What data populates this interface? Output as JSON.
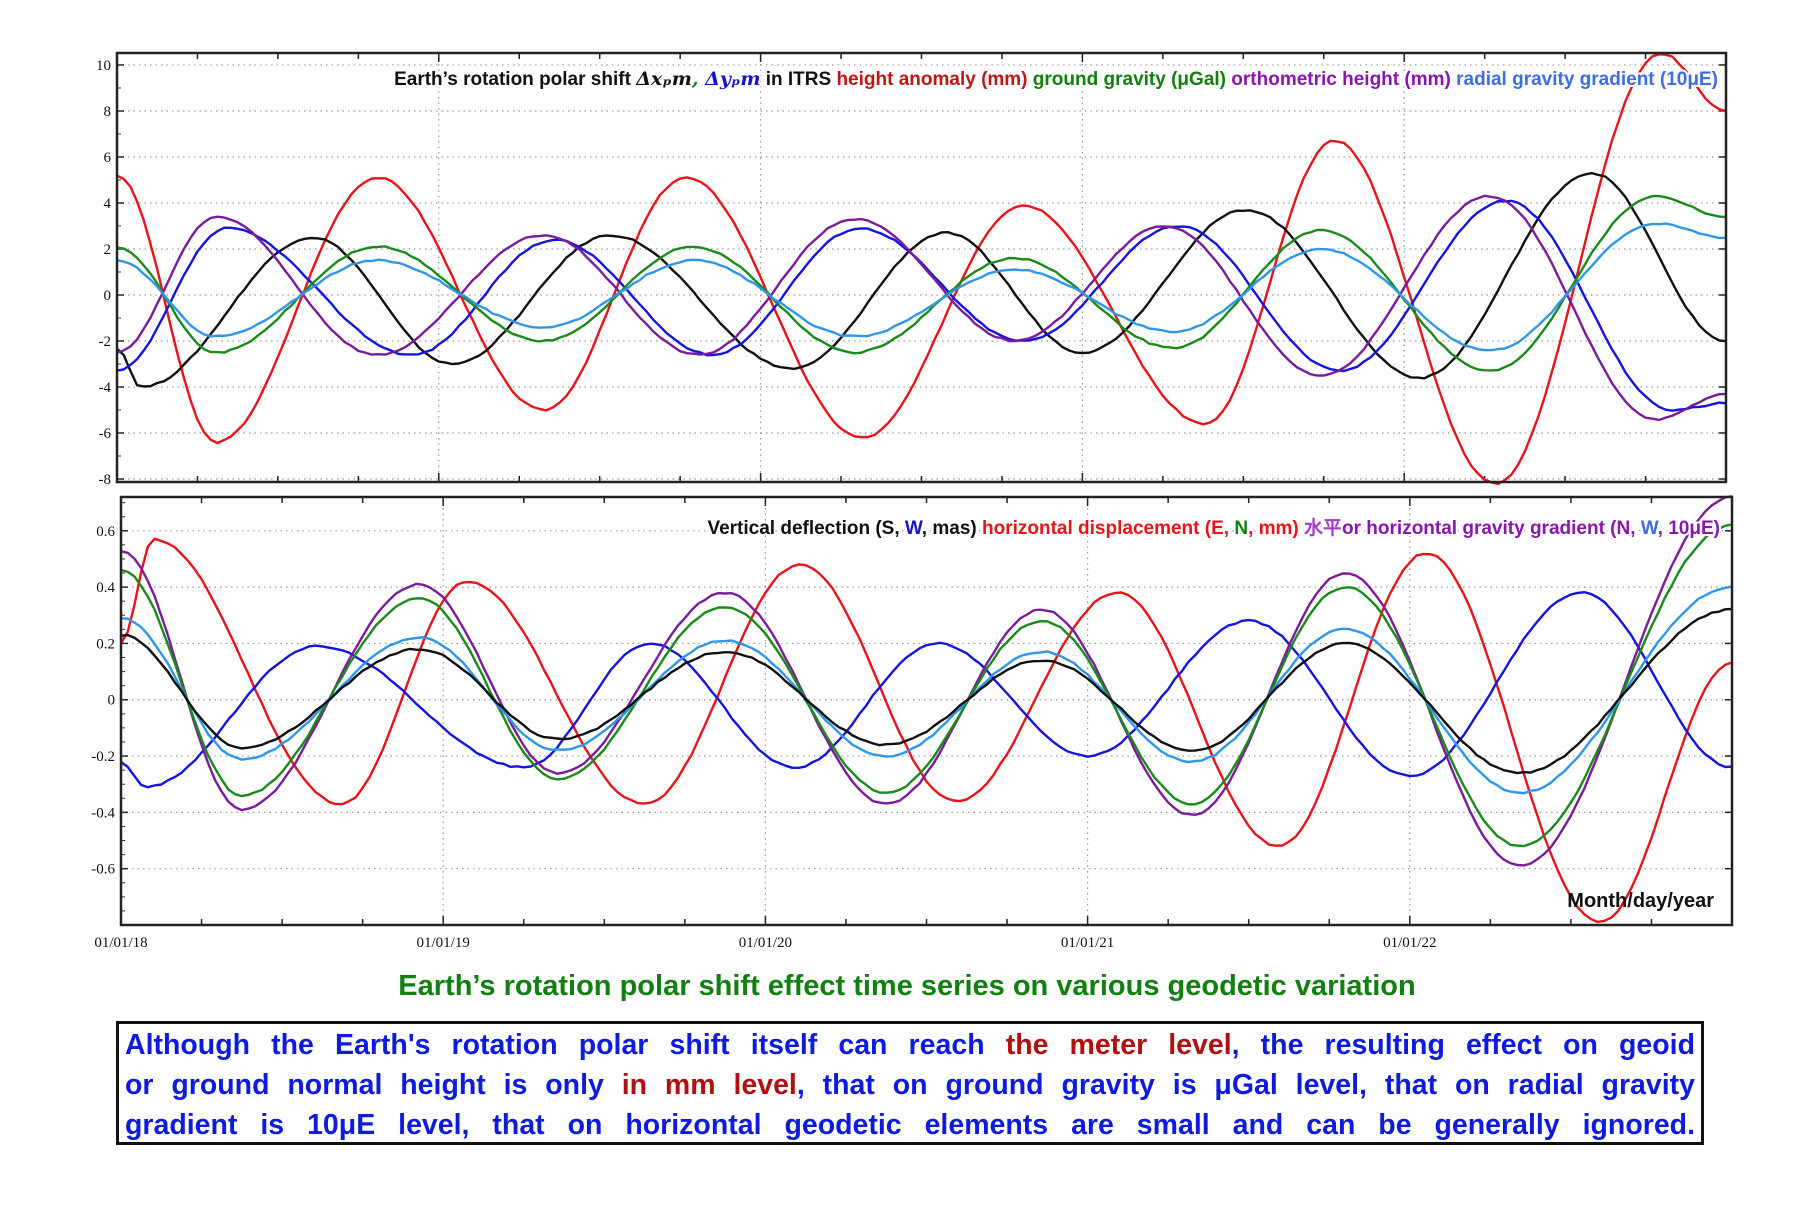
{
  "chart_data": [
    {
      "type": "line",
      "panel": "top",
      "title": "",
      "legend_segments": [
        {
          "text": "Earth’s rotation polar shift  ",
          "color": "#111111"
        },
        {
          "text": "Δxₚm",
          "color": "#111111",
          "serif": true
        },
        {
          "text": ", ",
          "color": "#118011",
          "serif": true
        },
        {
          "text": "Δyₚm",
          "color": "#1515c8",
          "serif": true
        },
        {
          "text": " in ITRS  ",
          "color": "#111111"
        },
        {
          "text": "height anomaly (mm) ",
          "color": "#c01616"
        },
        {
          "text": "ground gravity (μGal) ",
          "color": "#118011"
        },
        {
          "text": "orthometric height (mm) ",
          "color": "#8a16b0"
        },
        {
          "text": "radial gravity gradient (10μE)",
          "color": "#3d6de0"
        }
      ],
      "legend_placement": "top-right",
      "xlabel": "",
      "ylabel": "",
      "x_unit": "months since 01/01/18",
      "xlim": [
        0,
        60
      ],
      "ylim": [
        -8.13,
        10.52
      ],
      "yticks": [
        10,
        8,
        6,
        4,
        2,
        0,
        -2,
        -4,
        -6,
        -8
      ],
      "grid": true,
      "series": [
        {
          "name": "height anomaly (mm)",
          "color": "#e8141a",
          "points": [
            [
              0,
              5.2
            ],
            [
              3.7,
              -6.4
            ],
            [
              9.7,
              5.1
            ],
            [
              15.9,
              -5.0
            ],
            [
              21.2,
              5.1
            ],
            [
              27.8,
              -6.2
            ],
            [
              33.8,
              3.9
            ],
            [
              40.6,
              -5.6
            ],
            [
              45.4,
              6.7
            ],
            [
              51.4,
              -8.2
            ],
            [
              57.6,
              10.5
            ],
            [
              60,
              8.0
            ]
          ]
        },
        {
          "name": "Δxp m",
          "color": "#111111",
          "points": [
            [
              0,
              -2.3
            ],
            [
              0.9,
              -4.0
            ],
            [
              7.3,
              2.5
            ],
            [
              12.5,
              -3.0
            ],
            [
              18.4,
              2.6
            ],
            [
              25.2,
              -3.2
            ],
            [
              30.9,
              2.7
            ],
            [
              36.0,
              -2.5
            ],
            [
              42.1,
              3.7
            ],
            [
              48.6,
              -3.6
            ],
            [
              55.0,
              5.3
            ],
            [
              60,
              -2.0
            ]
          ]
        },
        {
          "name": "Δyp m",
          "color": "#1414e0",
          "points": [
            [
              0,
              -3.3
            ],
            [
              4.1,
              2.9
            ],
            [
              11.0,
              -2.6
            ],
            [
              16.3,
              2.4
            ],
            [
              22.2,
              -2.6
            ],
            [
              27.7,
              2.9
            ],
            [
              33.8,
              -2.0
            ],
            [
              39.6,
              3.0
            ],
            [
              45.6,
              -3.3
            ],
            [
              51.8,
              4.1
            ],
            [
              58.0,
              -5.0
            ],
            [
              60,
              -4.7
            ]
          ]
        },
        {
          "name": "orthometric height (mm)",
          "color": "#7a1c9a",
          "points": [
            [
              0,
              -2.5
            ],
            [
              3.7,
              3.4
            ],
            [
              9.7,
              -2.6
            ],
            [
              15.9,
              2.6
            ],
            [
              21.7,
              -2.6
            ],
            [
              27.5,
              3.3
            ],
            [
              33.5,
              -2.0
            ],
            [
              39.1,
              3.0
            ],
            [
              44.9,
              -3.5
            ],
            [
              51.2,
              4.3
            ],
            [
              57.4,
              -5.4
            ],
            [
              60,
              -4.3
            ]
          ]
        },
        {
          "name": "ground gravity (μGal)",
          "color": "#1a8a1a",
          "points": [
            [
              0,
              2.1
            ],
            [
              3.7,
              -2.5
            ],
            [
              9.7,
              2.1
            ],
            [
              15.9,
              -2.0
            ],
            [
              21.5,
              2.1
            ],
            [
              27.5,
              -2.5
            ],
            [
              33.5,
              1.6
            ],
            [
              39.4,
              -2.3
            ],
            [
              44.9,
              2.8
            ],
            [
              51.2,
              -3.3
            ],
            [
              57.4,
              4.3
            ],
            [
              60,
              3.4
            ]
          ]
        },
        {
          "name": "radial gravity gradient (10μE)",
          "color": "#2f96e8",
          "points": [
            [
              0,
              1.5
            ],
            [
              3.7,
              -1.8
            ],
            [
              9.7,
              1.5
            ],
            [
              15.9,
              -1.4
            ],
            [
              21.5,
              1.5
            ],
            [
              27.5,
              -1.8
            ],
            [
              33.5,
              1.1
            ],
            [
              39.4,
              -1.6
            ],
            [
              44.9,
              2.0
            ],
            [
              51.2,
              -2.4
            ],
            [
              57.4,
              3.1
            ],
            [
              60,
              2.5
            ]
          ]
        }
      ]
    },
    {
      "type": "line",
      "panel": "bottom",
      "title": "",
      "legend_segments": [
        {
          "text": "Vertical deflection (S, ",
          "color": "#111111"
        },
        {
          "text": "W",
          "color": "#1515c8"
        },
        {
          "text": ", mas)  ",
          "color": "#111111"
        },
        {
          "text": "horizontal displacement (E, ",
          "color": "#e8141a"
        },
        {
          "text": "N",
          "color": "#118011"
        },
        {
          "text": ", mm)  ",
          "color": "#e8141a"
        },
        {
          "text": "水平",
          "color": "#a03cd0"
        },
        {
          "text": "or horizontal gravity gradient (N, ",
          "color": "#8a16b0"
        },
        {
          "text": "W",
          "color": "#3d6de0"
        },
        {
          "text": ", 10μE)",
          "color": "#8a16b0"
        }
      ],
      "legend_placement": "top-right",
      "xlabel": "Month/day/year",
      "ylabel": "",
      "x_unit": "months since 01/01/18",
      "xlim": [
        0,
        60
      ],
      "ylim": [
        -0.8,
        0.72
      ],
      "yticks": [
        "0.6",
        "0.4",
        "0.2",
        "0",
        "-0.2",
        "-0.4",
        "-0.6"
      ],
      "xticks": [
        "01/01/18",
        "01/01/19",
        "01/01/20",
        "01/01/21",
        "01/01/22"
      ],
      "grid": true,
      "series": [
        {
          "name": "horizontal displacement E (mm)",
          "color": "#e8141a",
          "points": [
            [
              0,
              0.2
            ],
            [
              1.2,
              0.57
            ],
            [
              8.2,
              -0.37
            ],
            [
              12.9,
              0.42
            ],
            [
              19.5,
              -0.37
            ],
            [
              25.3,
              0.48
            ],
            [
              31.1,
              -0.36
            ],
            [
              37.1,
              0.38
            ],
            [
              43.1,
              -0.52
            ],
            [
              48.6,
              0.52
            ],
            [
              55.1,
              -0.79
            ],
            [
              60,
              0.13
            ]
          ]
        },
        {
          "name": "vertical deflection W (mas)",
          "color": "#1414e0",
          "points": [
            [
              0,
              -0.22
            ],
            [
              0.9,
              -0.31
            ],
            [
              7.3,
              0.19
            ],
            [
              15.0,
              -0.24
            ],
            [
              19.7,
              0.2
            ],
            [
              25.1,
              -0.24
            ],
            [
              30.4,
              0.2
            ],
            [
              36.0,
              -0.2
            ],
            [
              42.0,
              0.28
            ],
            [
              48.0,
              -0.27
            ],
            [
              54.4,
              0.38
            ],
            [
              60,
              -0.24
            ]
          ]
        },
        {
          "name": "horizontal gravity gradient N (10μE)",
          "color": "#7a1c9a",
          "points": [
            [
              0,
              0.53
            ],
            [
              4.5,
              -0.39
            ],
            [
              11.1,
              0.41
            ],
            [
              16.3,
              -0.26
            ],
            [
              22.5,
              0.38
            ],
            [
              28.5,
              -0.37
            ],
            [
              34.3,
              0.32
            ],
            [
              39.9,
              -0.41
            ],
            [
              45.6,
              0.45
            ],
            [
              52.1,
              -0.59
            ],
            [
              60,
              0.72
            ]
          ]
        },
        {
          "name": "horizontal displacement N (mm)",
          "color": "#1a8a1a",
          "points": [
            [
              0,
              0.46
            ],
            [
              4.5,
              -0.34
            ],
            [
              11.1,
              0.36
            ],
            [
              16.3,
              -0.28
            ],
            [
              22.5,
              0.33
            ],
            [
              28.5,
              -0.33
            ],
            [
              34.3,
              0.28
            ],
            [
              39.9,
              -0.37
            ],
            [
              45.6,
              0.4
            ],
            [
              52.1,
              -0.52
            ],
            [
              60,
              0.62
            ]
          ]
        },
        {
          "name": "horizontal gravity gradient W (10μE)",
          "color": "#2f96e8",
          "points": [
            [
              0,
              0.29
            ],
            [
              4.5,
              -0.21
            ],
            [
              11.1,
              0.22
            ],
            [
              16.3,
              -0.18
            ],
            [
              22.5,
              0.21
            ],
            [
              28.5,
              -0.2
            ],
            [
              34.3,
              0.17
            ],
            [
              39.9,
              -0.22
            ],
            [
              45.6,
              0.25
            ],
            [
              52.1,
              -0.33
            ],
            [
              60,
              0.4
            ]
          ]
        },
        {
          "name": "vertical deflection S (mas)",
          "color": "#111111",
          "points": [
            [
              0,
              0.23
            ],
            [
              4.5,
              -0.17
            ],
            [
              11.1,
              0.18
            ],
            [
              16.3,
              -0.14
            ],
            [
              22.5,
              0.17
            ],
            [
              28.5,
              -0.16
            ],
            [
              34.3,
              0.14
            ],
            [
              39.9,
              -0.18
            ],
            [
              45.6,
              0.2
            ],
            [
              52.1,
              -0.26
            ],
            [
              60,
              0.32
            ]
          ]
        }
      ]
    }
  ],
  "caption": "Earth’s rotation polar shift  effect time series on various geodetic variation",
  "note": {
    "lines": [
      [
        {
          "text": "Although the Earth's rotation polar shift itself can reach ",
          "hl": false
        },
        {
          "text": "the meter level",
          "hl": true
        },
        {
          "text": ", the resulting effect on geoid",
          "hl": false
        }
      ],
      [
        {
          "text": "or ground normal height is only ",
          "hl": false
        },
        {
          "text": "in mm level",
          "hl": true
        },
        {
          "text": ", that on ground gravity is μGal level, that on radial gravity",
          "hl": false
        }
      ],
      [
        {
          "text": "gradient is 10μE level, that on horizontal geodetic elements are small and can be generally ignored.",
          "hl": false
        }
      ]
    ]
  }
}
